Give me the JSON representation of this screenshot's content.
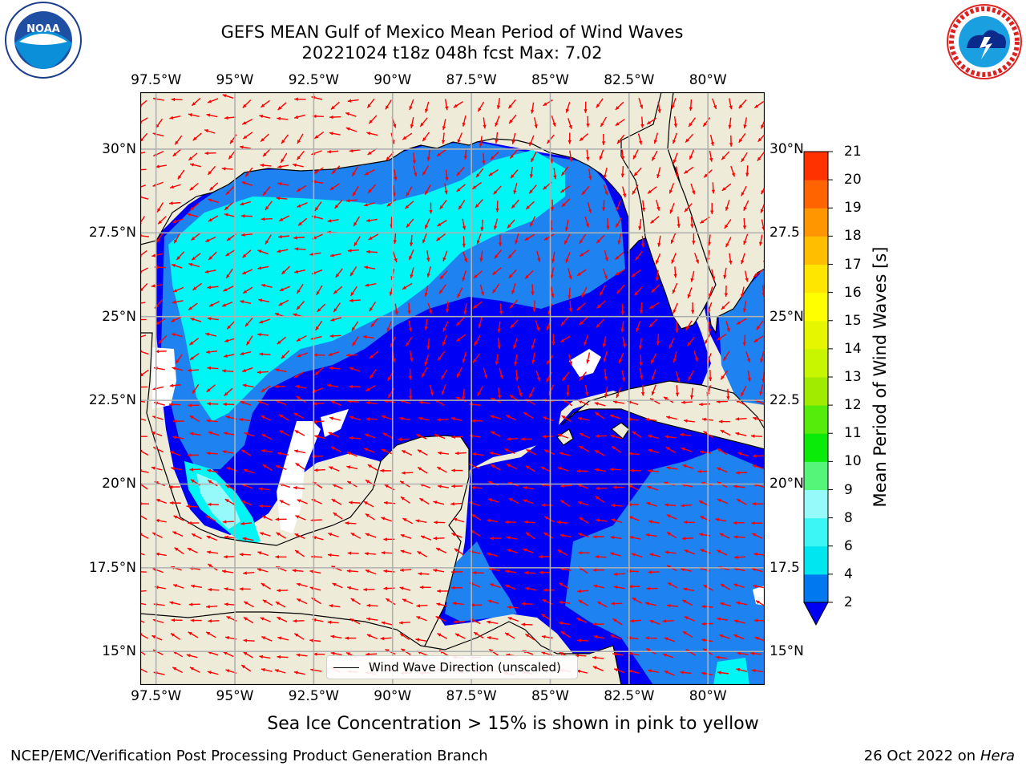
{
  "header": {
    "title_line1": "GEFS MEAN Gulf of Mexico Mean Period of Wind Waves",
    "title_line2": "20221024 t18z 048h fcst   Max: 7.02"
  },
  "logos": {
    "left": "NOAA",
    "right": "NATIONAL WEATHER SERVICE"
  },
  "map": {
    "lon_ticks": [
      "97.5°W",
      "95°W",
      "92.5°W",
      "90°W",
      "87.5°W",
      "85°W",
      "82.5°W",
      "80°W"
    ],
    "lat_ticks": [
      "30°N",
      "27.5°N",
      "25°N",
      "22.5°N",
      "20°N",
      "17.5°N",
      "15°N"
    ],
    "lat_ticks_right": [
      "30°N",
      "27.5",
      "25°N",
      "22.5",
      "20°N",
      "17.5",
      "15°N"
    ],
    "lon_range": [
      -98,
      -78.2
    ],
    "lat_range": [
      14,
      31.7
    ],
    "gridlines": true,
    "colors": {
      "land": "#eeecd9",
      "ocean_2_4": "#0000f5",
      "ocean_4_6": "#1e82f0",
      "ocean_6_8": "#00f5f5",
      "grid": "#b0b0b0",
      "arrows": "#ff0000",
      "no_data": "#ffffff"
    }
  },
  "legend": {
    "label": "Wind Wave Direction (unscaled)"
  },
  "colorbar": {
    "title": "Mean Period of Wind Waves [s]",
    "levels": [
      "2",
      "4",
      "6",
      "8",
      "9",
      "10",
      "11",
      "12",
      "13",
      "14",
      "15",
      "16",
      "17",
      "18",
      "19",
      "20",
      "21"
    ],
    "colors": [
      "#0078f0",
      "#00e6f0",
      "#3cf5f5",
      "#96fafa",
      "#55f57a",
      "#0aeb0a",
      "#55eb0a",
      "#a0eb00",
      "#c8f500",
      "#e6f500",
      "#ffff00",
      "#ffe600",
      "#ffbe00",
      "#ff9600",
      "#ff6400",
      "#ff3200",
      "#ff0000"
    ],
    "under_color": "#0000f5",
    "extend": "min"
  },
  "subtitle": "Sea Ice Concentration > 15% is shown in pink to yellow",
  "footer": {
    "left": "NCEP/EMC/Verification Post Processing Product Generation Branch",
    "right_date": "26 Oct 2022 on ",
    "right_host": "Hera"
  }
}
